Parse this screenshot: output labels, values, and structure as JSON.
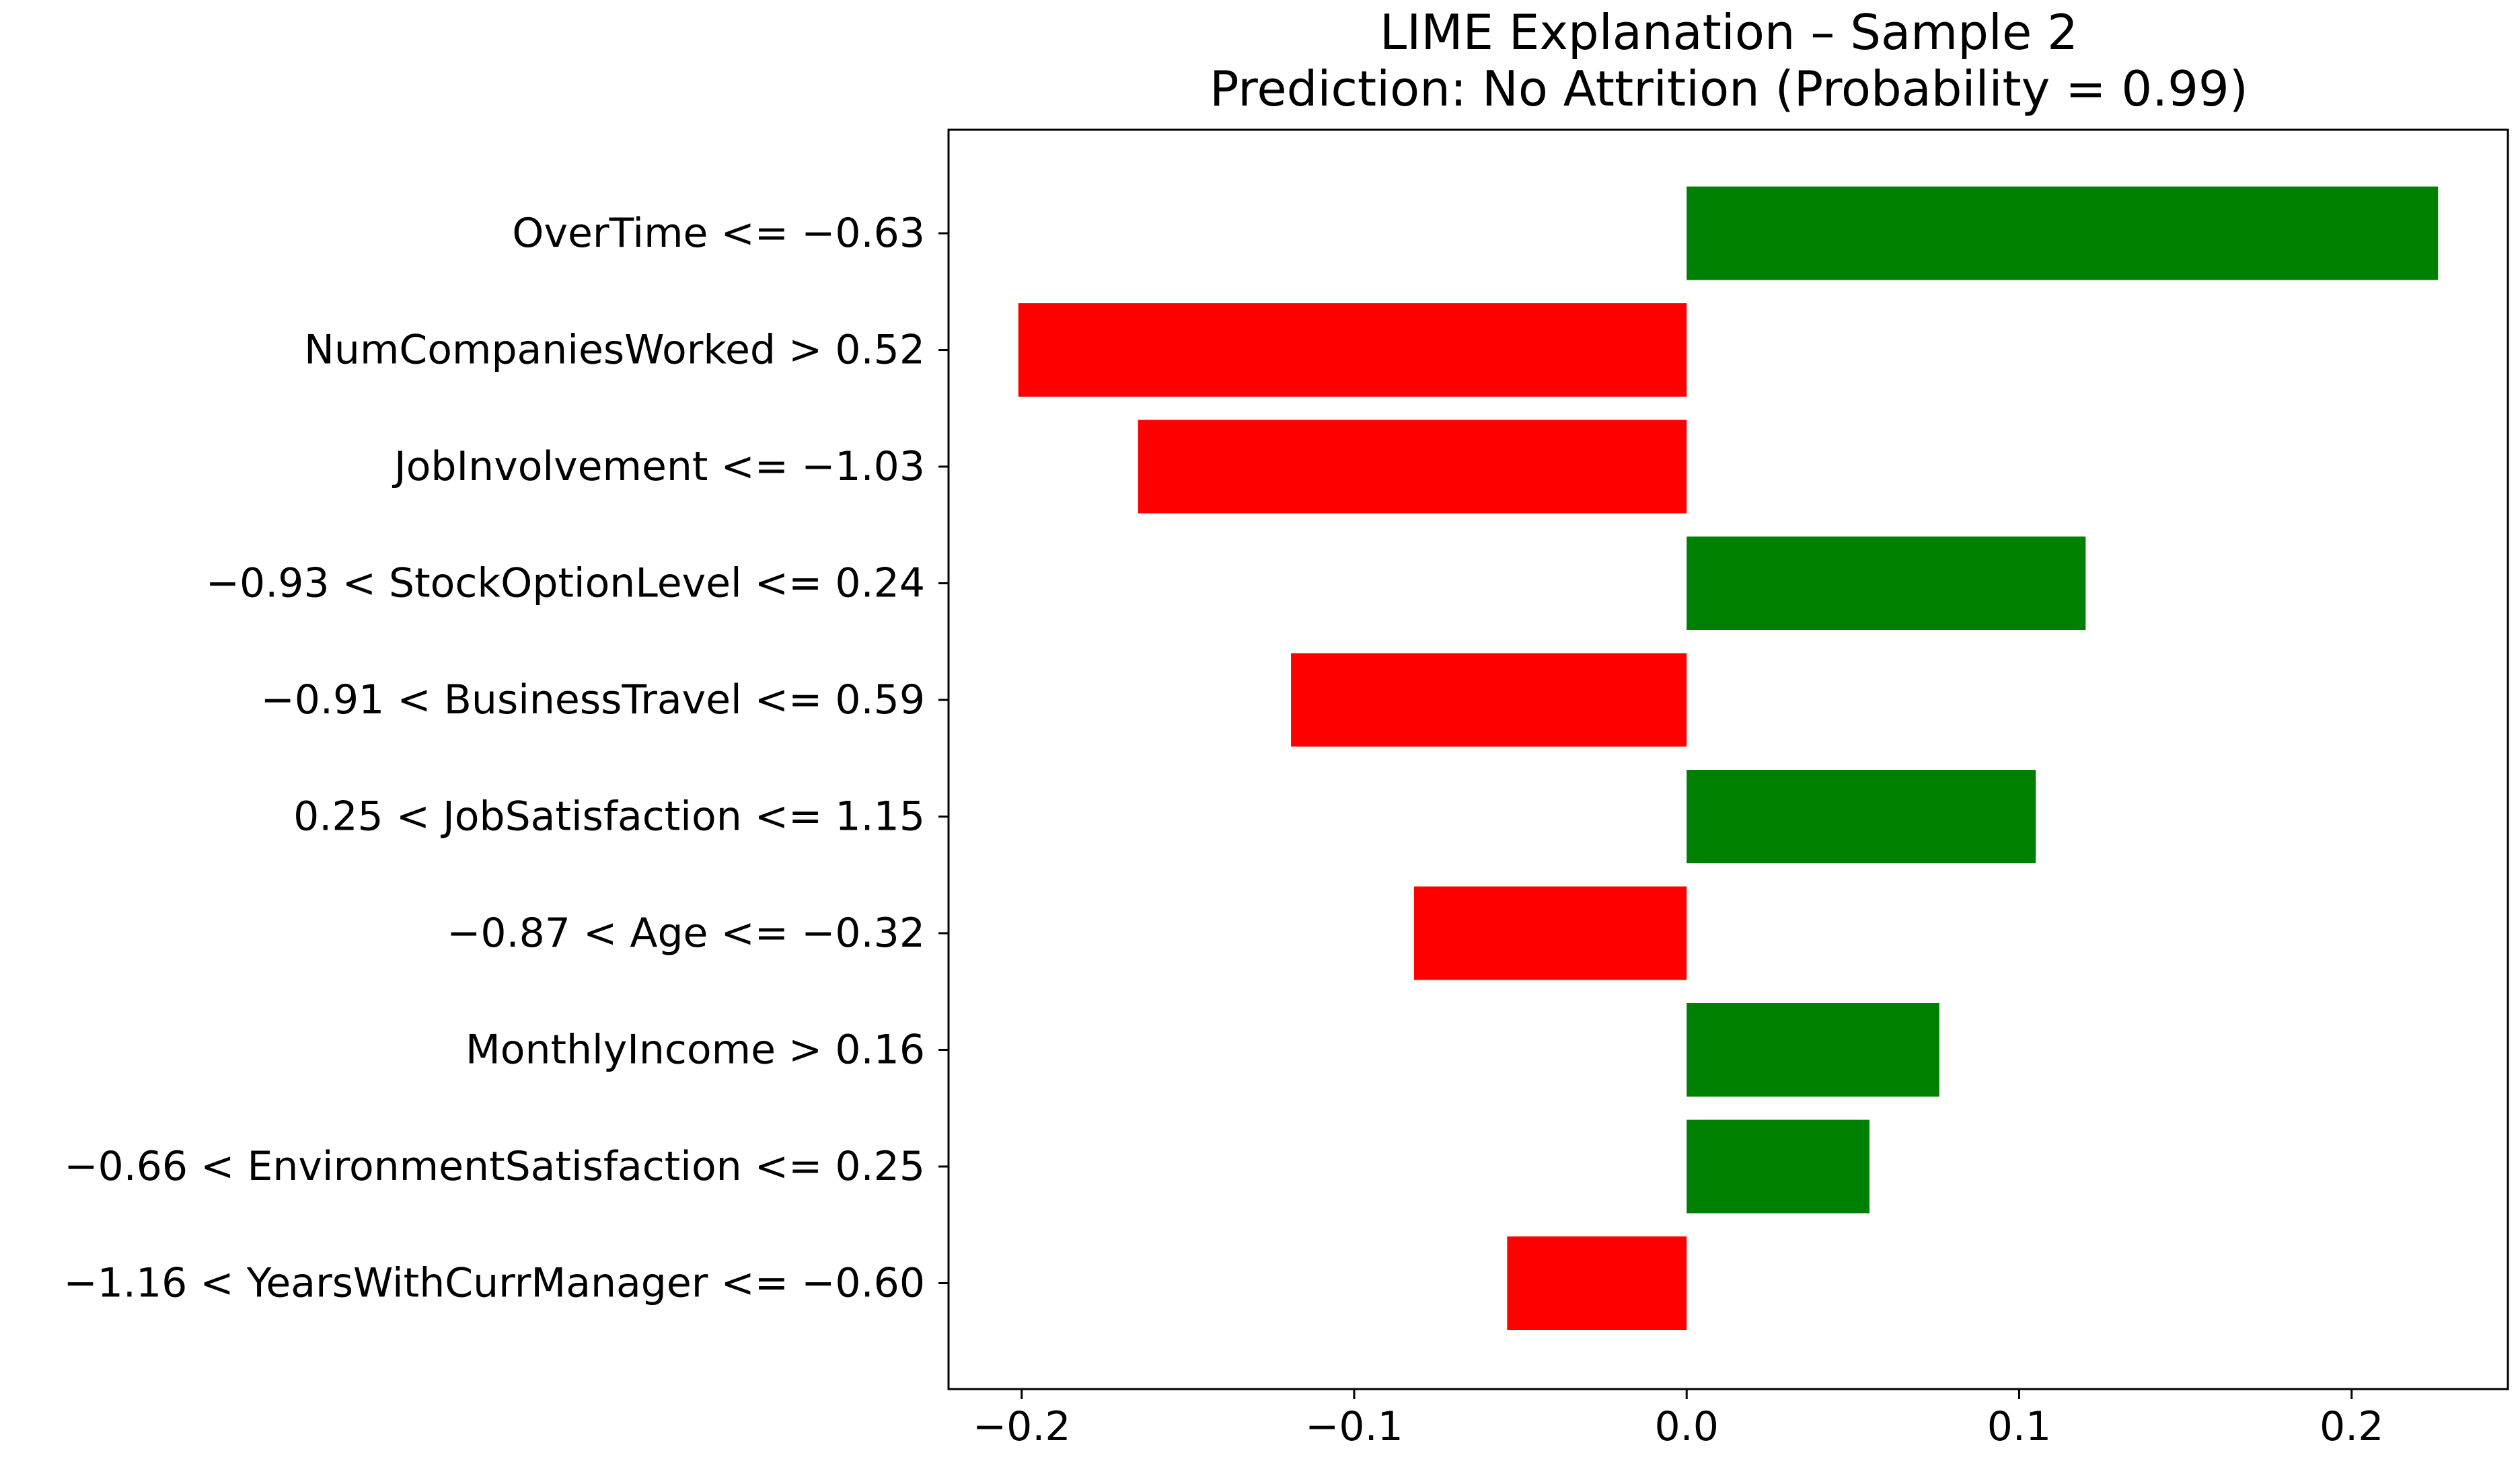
{
  "chart_data": {
    "type": "bar",
    "orientation": "horizontal",
    "title": "LIME Explanation – Sample 2",
    "subtitle": "Prediction: No Attrition (Probability = 0.99)",
    "xlabel": "",
    "ylabel": "",
    "categories": [
      "OverTime <= −0.63",
      "NumCompaniesWorked > 0.52",
      "JobInvolvement <= −1.03",
      "−0.93 < StockOptionLevel <= 0.24",
      "−0.91 < BusinessTravel <= 0.59",
      "0.25 < JobSatisfaction <= 1.15",
      "−0.87 < Age <= −0.32",
      "MonthlyIncome > 0.16",
      "−0.66 < EnvironmentSatisfaction <= 0.25",
      "−1.16 < YearsWithCurrManager <= −0.60"
    ],
    "values": [
      0.226,
      -0.201,
      -0.165,
      0.12,
      -0.119,
      0.105,
      -0.082,
      0.076,
      0.055,
      -0.054
    ],
    "xlim": [
      -0.222,
      0.247
    ],
    "xticks": [
      -0.2,
      -0.1,
      0.0,
      0.1,
      0.2
    ],
    "xtick_labels": [
      "−0.2",
      "−0.1",
      "0.0",
      "0.1",
      "0.2"
    ],
    "grid": false,
    "legend": "none",
    "colors": {
      "positive": "#008000",
      "negative": "#ff0000",
      "axes": "#000000"
    }
  }
}
